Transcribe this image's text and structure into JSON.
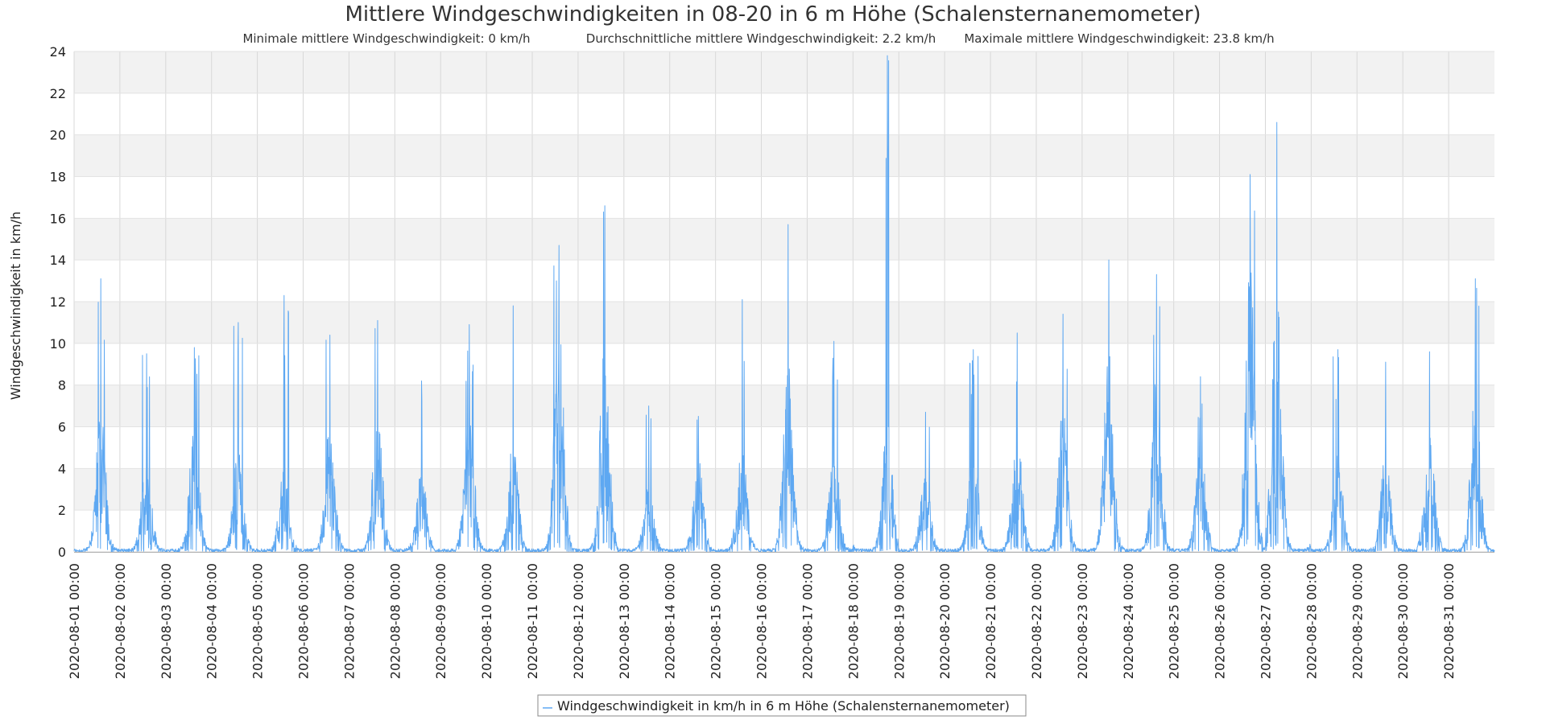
{
  "chart_data": {
    "type": "line",
    "title": "Mittlere Windgeschwindigkeiten in 08-20 in 6 m Höhe (Schalensternanemometer)",
    "subtitle": {
      "min": "Minimale mittlere Windgeschwindigkeit: 0 km/h",
      "avg": "Durchschnittliche mittlere Windgeschwindigkeit: 2.2 km/h",
      "max": "Maximale mittlere Windgeschwindigkeit: 23.8 km/h"
    },
    "xlabel": "",
    "ylabel": "Windgeschwindigkeit in km/h",
    "ylim": [
      0,
      24
    ],
    "yticks": [
      0,
      2,
      4,
      6,
      8,
      10,
      12,
      14,
      16,
      18,
      20,
      22,
      24
    ],
    "x_range_days": [
      0,
      31
    ],
    "x_ticks": [
      "2020-08-01 00:00",
      "2020-08-02 00:00",
      "2020-08-03 00:00",
      "2020-08-04 00:00",
      "2020-08-05 00:00",
      "2020-08-06 00:00",
      "2020-08-07 00:00",
      "2020-08-08 00:00",
      "2020-08-09 00:00",
      "2020-08-10 00:00",
      "2020-08-11 00:00",
      "2020-08-12 00:00",
      "2020-08-13 00:00",
      "2020-08-14 00:00",
      "2020-08-15 00:00",
      "2020-08-16 00:00",
      "2020-08-17 00:00",
      "2020-08-18 00:00",
      "2020-08-19 00:00",
      "2020-08-20 00:00",
      "2020-08-21 00:00",
      "2020-08-22 00:00",
      "2020-08-23 00:00",
      "2020-08-24 00:00",
      "2020-08-25 00:00",
      "2020-08-26 00:00",
      "2020-08-27 00:00",
      "2020-08-28 00:00",
      "2020-08-29 00:00",
      "2020-08-30 00:00",
      "2020-08-31 00:00"
    ],
    "series": [
      {
        "name": "Windgeschwindigkeit in km/h in 6 m Höhe (Schalensternanemometer)",
        "color": "#5ea8f2",
        "daily_peaks": [
          13.1,
          9.5,
          9.8,
          11.0,
          12.3,
          10.4,
          11.1,
          8.2,
          10.9,
          11.8,
          14.7,
          16.6,
          7.0,
          6.5,
          12.1,
          15.7,
          10.1,
          23.8,
          6.7,
          9.7,
          10.5,
          11.4,
          14.0,
          13.3,
          8.4,
          18.1,
          20.6,
          9.7,
          9.1,
          9.6,
          13.1
        ],
        "daily_typical": [
          4.5,
          3.0,
          4.0,
          3.5,
          2.5,
          4.0,
          4.5,
          2.5,
          4.5,
          3.5,
          7.0,
          6.5,
          2.0,
          3.0,
          3.5,
          6.0,
          3.5,
          4.0,
          2.5,
          3.5,
          4.0,
          4.5,
          6.5,
          5.5,
          3.5,
          9.0,
          8.0,
          3.0,
          3.0,
          4.0,
          5.0
        ],
        "peak_hour": [
          14,
          14,
          15,
          14,
          14,
          14,
          15,
          14,
          15,
          14,
          14,
          14,
          13,
          15,
          14,
          14,
          14,
          18,
          14,
          15,
          14,
          14,
          14,
          15,
          14,
          16,
          6,
          14,
          15,
          14,
          14
        ]
      }
    ],
    "legend": {
      "label": "Windgeschwindigkeit in km/h in 6 m Höhe (Schalensternanemometer)",
      "position": "bottom-center"
    },
    "grid": true
  },
  "colors": {
    "series": "#5ea8f2",
    "band_alt": "#f2f2f2",
    "grid": "#d8d8d8",
    "axis": "#aaaaaa"
  }
}
